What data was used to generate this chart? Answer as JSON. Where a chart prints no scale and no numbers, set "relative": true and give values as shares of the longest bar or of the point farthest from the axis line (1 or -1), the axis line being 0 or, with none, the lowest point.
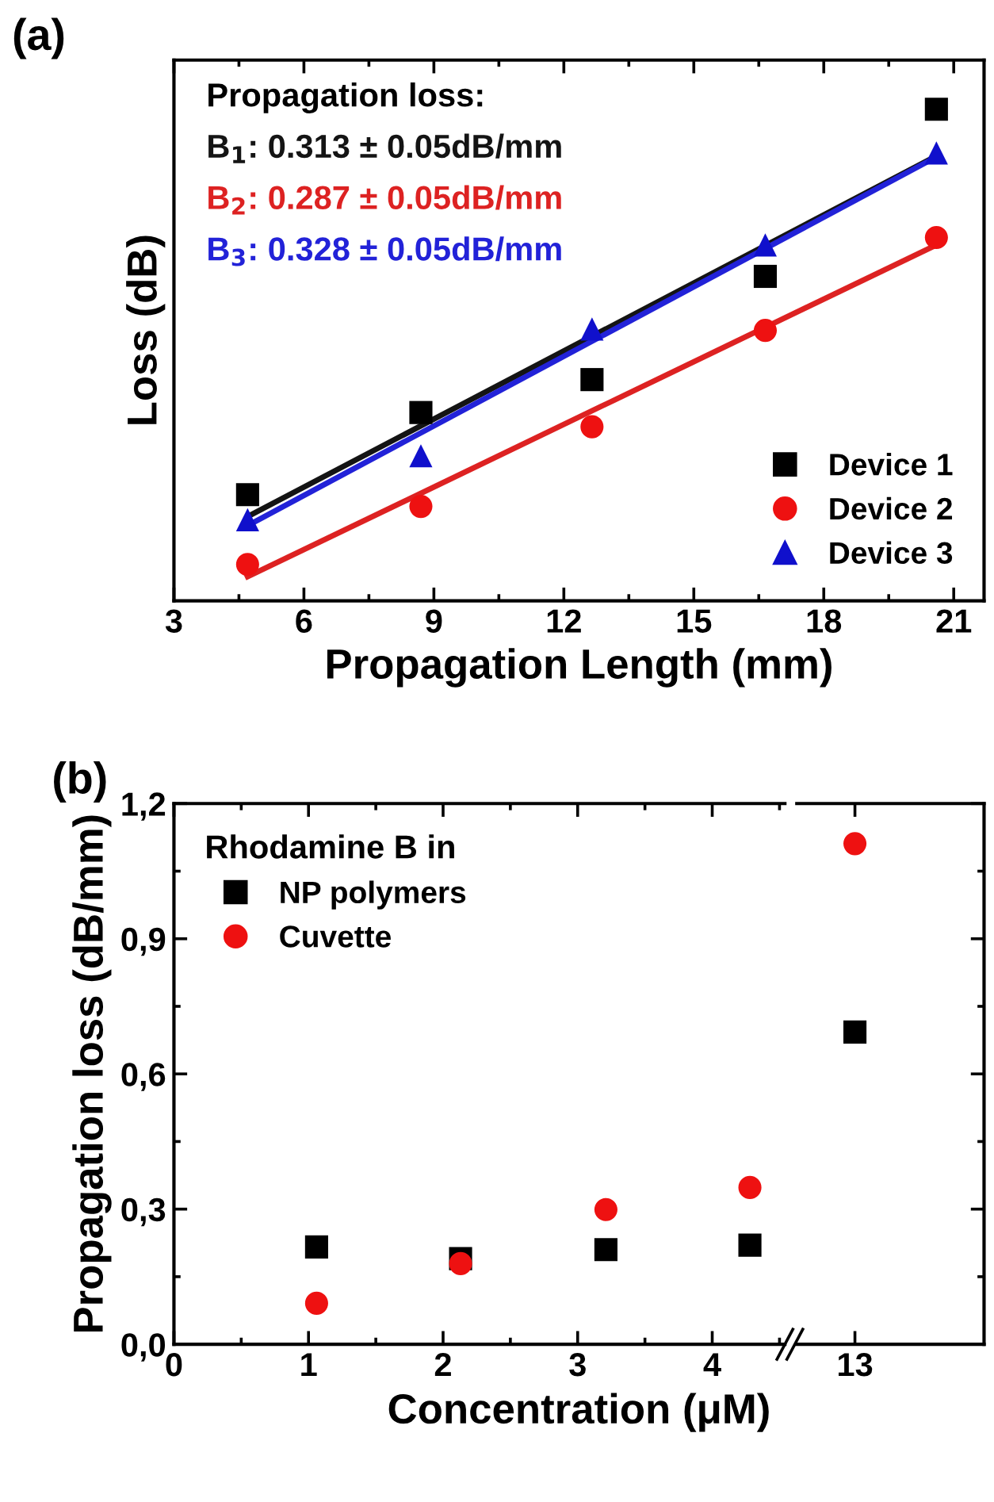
{
  "chart_data": [
    {
      "type": "scatter",
      "xlabel": "Propagation Length (mm)",
      "ylabel": "Loss (dB)",
      "relative": true,
      "xlim": [
        3,
        21.7
      ],
      "xticks": [
        3,
        6,
        9,
        12,
        15,
        18,
        21
      ],
      "legend": "bottom right",
      "annotations": [
        "(a)",
        "Propagation loss:"
      ],
      "series": [
        {
          "name": "Device 1",
          "color": "#000000",
          "marker": "square",
          "x": [
            4.7,
            8.7,
            12.65,
            16.65,
            20.6
          ],
          "values": [
            0.216,
            0.383,
            0.45,
            0.66,
            1.0
          ]
        },
        {
          "name": "Device 2",
          "color": "#ee1111",
          "marker": "circle",
          "x": [
            4.7,
            8.7,
            12.65,
            16.65,
            20.6
          ],
          "values": [
            0.074,
            0.192,
            0.354,
            0.55,
            0.739
          ]
        },
        {
          "name": "Device 3",
          "color": "#1010cc",
          "marker": "triangle",
          "x": [
            4.7,
            8.7,
            12.65,
            16.65,
            20.6
          ],
          "values": [
            0.165,
            0.295,
            0.553,
            0.724,
            0.911
          ]
        },
        {
          "type": "line",
          "name": "B$_{1}$: 0.313 ± 0.05dB/mm",
          "color": "#141414",
          "x": [
            4.8,
            20.6
          ],
          "values": [
            0.176,
            0.905
          ]
        },
        {
          "type": "line",
          "name": "B$_{2}$: 0.287 ± 0.05dB/mm",
          "color": "#dd2222",
          "x": [
            4.7,
            20.6
          ],
          "values": [
            0.049,
            0.724
          ]
        },
        {
          "type": "line",
          "name": "B$_{3}$: 0.328 ± 0.05dB/mm",
          "color": "#2222d8",
          "x": [
            4.7,
            20.6
          ],
          "values": [
            0.153,
            0.903
          ]
        }
      ]
    },
    {
      "type": "scatter",
      "xlabel": "Concentration (μM)",
      "ylabel": "Propagation loss (dB/mm)",
      "xlim": [
        0,
        4.54
      ],
      "xticks": [
        0,
        1,
        2,
        3,
        4
      ],
      "ylim": [
        0,
        1.2
      ],
      "yticks": [
        {
          "value": 0,
          "label": "0,0"
        },
        {
          "value": 0.3,
          "label": "0,3"
        },
        {
          "value": 0.6,
          "label": "0,6"
        },
        {
          "value": 0.9,
          "label": "0,9"
        },
        {
          "value": 1.2,
          "label": "1,2"
        }
      ],
      "legend": "top left",
      "legend_title": "Rhodamine B in",
      "annotations": [
        "(b)"
      ],
      "series": [
        {
          "name": "NP polymers",
          "color": "#000000",
          "marker": "square",
          "x": [
            1.06,
            2.13,
            3.21,
            4.28
          ],
          "values": [
            0.216,
            0.19,
            0.21,
            0.22
          ]
        },
        {
          "name": "Cuvette",
          "color": "#ee1111",
          "marker": "circle",
          "x": [
            1.06,
            2.13,
            3.21,
            4.28
          ],
          "values": [
            0.091,
            0.179,
            0.299,
            0.348
          ]
        }
      ]
    },
    {
      "type": "scatter",
      "categories": [
        "13"
      ],
      "ylim": [
        0,
        1.2
      ],
      "yticks": [
        0,
        0.3,
        0.6,
        0.9,
        1.2
      ],
      "tick_labels": "x",
      "series": [
        {
          "color": "#000000",
          "marker": "square",
          "values": [
            0.693
          ]
        },
        {
          "color": "#ee1111",
          "marker": "circle",
          "values": [
            1.111
          ]
        }
      ]
    }
  ]
}
